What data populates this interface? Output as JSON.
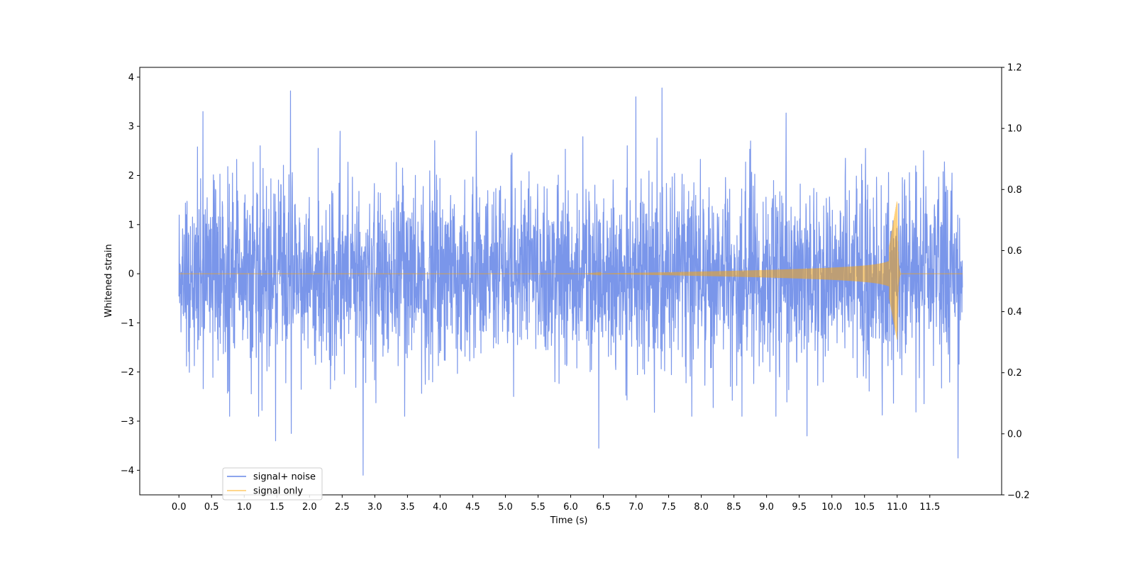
{
  "chart_data": {
    "type": "line",
    "title": "",
    "xlabel": "Time (s)",
    "ylabel": "Whitened strain",
    "xlim": [
      -0.6,
      12.6
    ],
    "ylim": [
      -4.5,
      4.2
    ],
    "y2lim": [
      -0.2,
      1.2
    ],
    "x_ticks": [
      0.0,
      0.5,
      1.0,
      1.5,
      2.0,
      2.5,
      3.0,
      3.5,
      4.0,
      4.5,
      5.0,
      5.5,
      6.0,
      6.5,
      7.0,
      7.5,
      8.0,
      8.5,
      9.0,
      9.5,
      10.0,
      10.5,
      11.0,
      11.5
    ],
    "x_tick_labels": [
      "0.0",
      "0.5",
      "1.0",
      "1.5",
      "2.0",
      "2.5",
      "3.0",
      "3.5",
      "4.0",
      "4.5",
      "5.0",
      "5.5",
      "6.0",
      "6.5",
      "7.0",
      "7.5",
      "8.0",
      "8.5",
      "9.0",
      "9.5",
      "10.0",
      "10.5",
      "11.0",
      "11.5"
    ],
    "y_ticks": [
      -4,
      -3,
      -2,
      -1,
      0,
      1,
      2,
      3,
      4
    ],
    "y_tick_labels": [
      "−4",
      "−3",
      "−2",
      "−1",
      "0",
      "1",
      "2",
      "3",
      "4"
    ],
    "y2_ticks": [
      -0.2,
      0.0,
      0.2,
      0.4,
      0.6,
      0.8,
      1.0,
      1.2
    ],
    "y2_tick_labels": [
      "−0.2",
      "0.0",
      "0.2",
      "0.4",
      "0.6",
      "0.8",
      "1.0",
      "1.2"
    ],
    "grid": false,
    "legend_placement": "lower-left",
    "series": [
      {
        "name": "signal+ noise",
        "color": "#4169e1",
        "opacity": 0.7,
        "x_range": [
          0.0,
          12.0
        ],
        "typical_envelope": [
          -1.6,
          1.6
        ],
        "peak_points": [
          {
            "x": 0.37,
            "y": 3.3
          },
          {
            "x": 1.71,
            "y": 3.72
          },
          {
            "x": 7.0,
            "y": 3.6
          },
          {
            "x": 7.4,
            "y": 3.78
          },
          {
            "x": 9.3,
            "y": 3.27
          },
          {
            "x": 2.82,
            "y": -4.1
          },
          {
            "x": 1.48,
            "y": -3.4
          },
          {
            "x": 1.72,
            "y": -3.25
          },
          {
            "x": 6.43,
            "y": -3.55
          },
          {
            "x": 11.93,
            "y": -3.75
          },
          {
            "x": 9.62,
            "y": -3.3
          }
        ]
      },
      {
        "name": "signal only",
        "color": "#ffa500",
        "opacity": 0.5,
        "x_range": [
          0.0,
          12.0
        ],
        "chirp_onset_x": 6.8,
        "merger_x": 11.0,
        "peak_amplitude": [
          -1.3,
          1.5
        ],
        "ringdown_end_x": 11.05
      }
    ]
  }
}
